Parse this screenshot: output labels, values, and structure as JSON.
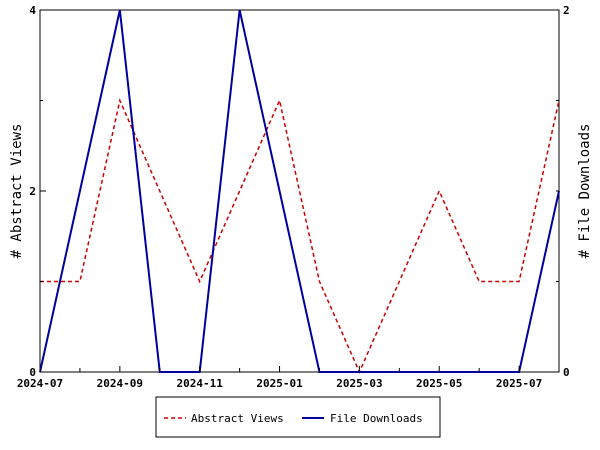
{
  "chart_data": {
    "type": "line",
    "x": [
      "2024-07",
      "2024-08",
      "2024-09",
      "2024-10",
      "2024-11",
      "2024-12",
      "2025-01",
      "2025-02",
      "2025-03",
      "2025-04",
      "2025-05",
      "2025-06",
      "2025-07",
      "2025-08"
    ],
    "x_tick_labels": [
      "2024-07",
      "2024-09",
      "2024-11",
      "2025-01",
      "2025-03",
      "2025-05",
      "2025-07"
    ],
    "ylabel": "# Abstract Views",
    "y2label": "# File Downloads",
    "ylim": [
      0,
      4
    ],
    "y2lim": [
      0,
      2
    ],
    "y_ticks": [
      "0",
      "2",
      "4"
    ],
    "y2_ticks": [
      "0",
      "2"
    ],
    "grid": false,
    "legend_position": "bottom",
    "series": [
      {
        "name": "Abstract Views",
        "axis": "left",
        "color": "#cc0000",
        "style": "dashed",
        "values": [
          1,
          1,
          3,
          2,
          1,
          2,
          3,
          1,
          0,
          1,
          2,
          1,
          1,
          3
        ]
      },
      {
        "name": "File Downloads",
        "axis": "right",
        "color": "#00009f",
        "style": "solid",
        "values": [
          0,
          1,
          2,
          0,
          0,
          2,
          1,
          0,
          0,
          0,
          0,
          0,
          0,
          1
        ]
      }
    ]
  }
}
